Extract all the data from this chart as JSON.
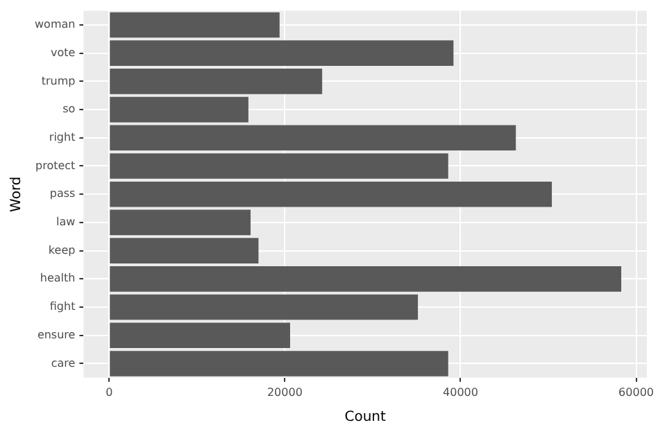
{
  "chart_data": {
    "type": "bar",
    "orientation": "horizontal",
    "xlabel": "Count",
    "ylabel": "Word",
    "categories": [
      "woman",
      "vote",
      "trump",
      "so",
      "right",
      "protect",
      "pass",
      "law",
      "keep",
      "health",
      "fight",
      "ensure",
      "care"
    ],
    "values": [
      19400,
      39200,
      24250,
      15850,
      46300,
      38600,
      50400,
      16100,
      17000,
      58300,
      35150,
      20600,
      38600
    ],
    "color": "#595959",
    "xlim": [
      -2915,
      61215
    ],
    "xticks": [
      0,
      20000,
      40000,
      60000
    ],
    "grid": true,
    "legend": false
  }
}
